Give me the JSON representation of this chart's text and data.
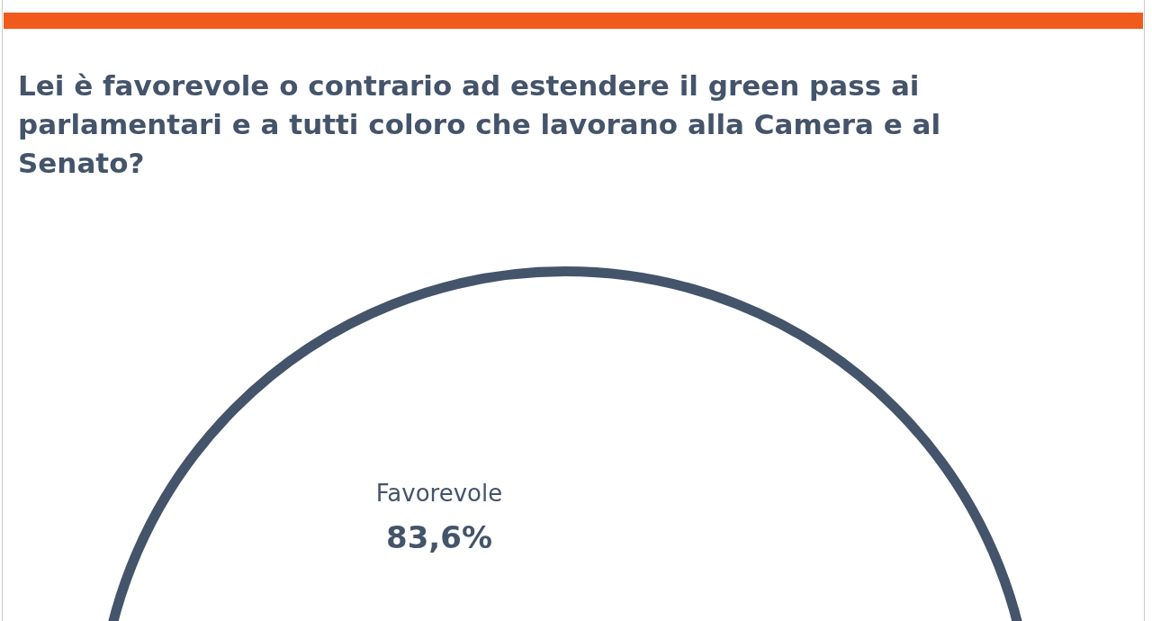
{
  "chart_data": {
    "type": "pie",
    "title": "Lei è favorevole o contrario ad estendere il green pass ai parlamentari e a tutti coloro che lavorano alla Camera e al Senato?",
    "categories": [
      "Favorevole"
    ],
    "values": [
      83.6
    ],
    "value_labels": [
      "83,6%"
    ],
    "colors": [
      "#ffffff"
    ],
    "legend": false
  }
}
